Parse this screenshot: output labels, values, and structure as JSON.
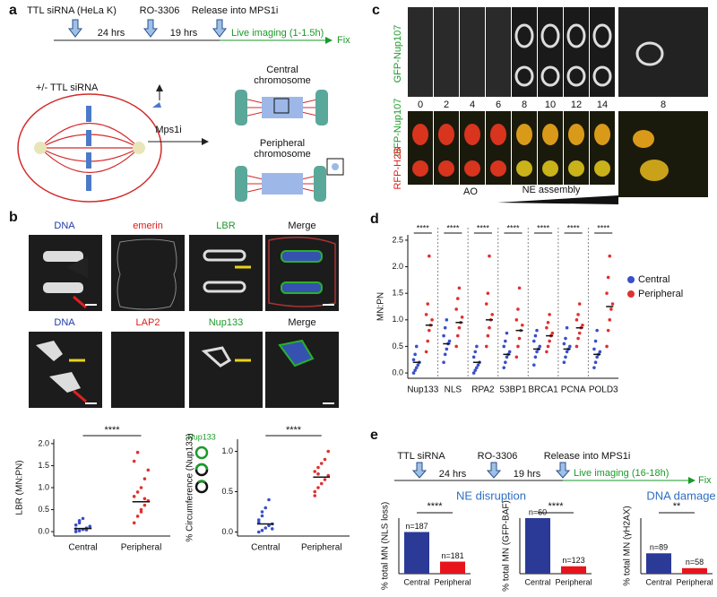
{
  "panels": {
    "a": {
      "label": "a",
      "timeline": [
        "TTL siRNA (HeLa K)",
        "RO-3306",
        "Release into MPS1i"
      ],
      "intervals": [
        "24 hrs",
        "19 hrs"
      ],
      "live": "Live imaging (1-1.5h)",
      "fix": "Fix",
      "treatment": "+/- TTL siRNA",
      "drug": "Mps1i",
      "central": [
        "Central",
        "chromosome"
      ],
      "peripheral": [
        "Peripheral",
        "chromosome"
      ]
    },
    "b": {
      "label": "b",
      "row1": [
        "DNA",
        "emerin",
        "LBR",
        "Merge"
      ],
      "row2": [
        "DNA",
        "LAP2",
        "Nup133",
        "Merge"
      ],
      "icon": "Nup133"
    },
    "c": {
      "label": "c",
      "row1": "GFP-Nup107",
      "row2": [
        "GFP-Nup107",
        "RFP-H2B"
      ],
      "frames": [
        "0",
        "2",
        "4",
        "6",
        "8",
        "10",
        "12",
        "14"
      ],
      "inset": "8",
      "ao": "AO",
      "ne": "NE assembly"
    },
    "d": {
      "label": "d"
    },
    "e": {
      "label": "e",
      "timeline": [
        "TTL siRNA",
        "RO-3306",
        "Release into MPS1i"
      ],
      "intervals": [
        "24 hrs",
        "19 hrs"
      ],
      "live": "Live imaging (16-18h)",
      "fix": "Fix",
      "group": "NE disruption"
    }
  },
  "chart_data": [
    {
      "type": "strip",
      "y_label": "LBR (MN:PN)",
      "categories": [
        "Central",
        "Peripheral"
      ],
      "colors": [
        "#3a4fc8",
        "#e03030"
      ],
      "values": [
        [
          0.0,
          0.02,
          0.05,
          0.08,
          0.1,
          0.15,
          0.2,
          0.3,
          0.04,
          0.12,
          0.06,
          0.25
        ],
        [
          0.2,
          0.35,
          0.5,
          0.6,
          0.7,
          0.8,
          0.9,
          1.0,
          1.2,
          1.4,
          1.6,
          1.8,
          0.45,
          0.75
        ]
      ],
      "means": [
        0.07,
        0.68
      ],
      "significance": "****",
      "ylim": [
        -0.1,
        2.1
      ],
      "yticks": [
        {
          "value": 0,
          "label": "0.0"
        },
        {
          "value": 0.5,
          "label": "0.5"
        },
        {
          "value": 1,
          "label": "1.0"
        },
        {
          "value": 1.5,
          "label": "1.5"
        },
        {
          "value": 2,
          "label": "2.0"
        }
      ]
    },
    {
      "type": "strip",
      "y_label": "% Circumference (Nup133)",
      "categories": [
        "Central",
        "Peripheral"
      ],
      "colors": [
        "#3a4fc8",
        "#e03030"
      ],
      "values": [
        [
          0.0,
          0.02,
          0.05,
          0.08,
          0.1,
          0.15,
          0.2,
          0.3,
          0.4,
          0.04,
          0.12,
          0.25
        ],
        [
          0.45,
          0.55,
          0.6,
          0.65,
          0.7,
          0.75,
          0.8,
          0.85,
          0.9,
          1.0,
          0.5,
          0.72
        ]
      ],
      "means": [
        0.1,
        0.68
      ],
      "significance": "****",
      "ylim": [
        -0.05,
        1.15
      ],
      "yticks": [
        {
          "value": 0,
          "label": "0.0"
        },
        {
          "value": 0.5,
          "label": "0.5"
        },
        {
          "value": 1,
          "label": "1.0"
        }
      ]
    },
    {
      "type": "strip",
      "y_label": "MN:PN",
      "categories": [
        "Nup133",
        "NLS",
        "RPA2",
        "53BP1",
        "BRCA1",
        "PCNA",
        "POLD3"
      ],
      "legend": "right",
      "series": [
        {
          "name": "Central",
          "color": "#3a4fc8",
          "means": [
            0.2,
            0.55,
            0.2,
            0.35,
            0.45,
            0.45,
            0.35
          ],
          "values": [
            [
              0.0,
              0.05,
              0.1,
              0.15,
              0.2,
              0.25,
              0.35,
              0.5
            ],
            [
              0.2,
              0.35,
              0.45,
              0.55,
              0.6,
              0.7,
              0.85,
              1.0
            ],
            [
              0.0,
              0.05,
              0.1,
              0.15,
              0.2,
              0.3,
              0.4,
              0.5
            ],
            [
              0.1,
              0.2,
              0.3,
              0.35,
              0.4,
              0.5,
              0.6,
              0.75
            ],
            [
              0.15,
              0.3,
              0.4,
              0.45,
              0.5,
              0.6,
              0.7,
              0.8
            ],
            [
              0.2,
              0.3,
              0.4,
              0.45,
              0.5,
              0.55,
              0.65,
              0.85
            ],
            [
              0.1,
              0.2,
              0.3,
              0.35,
              0.4,
              0.45,
              0.6,
              0.8
            ]
          ]
        },
        {
          "name": "Peripheral",
          "color": "#e03030",
          "means": [
            0.9,
            0.95,
            1.0,
            0.8,
            0.7,
            0.85,
            1.25
          ],
          "values": [
            [
              0.4,
              0.6,
              0.8,
              0.9,
              1.0,
              1.1,
              1.3,
              2.2
            ],
            [
              0.5,
              0.7,
              0.85,
              0.95,
              1.05,
              1.2,
              1.4,
              1.6
            ],
            [
              0.5,
              0.7,
              0.85,
              1.0,
              1.1,
              1.3,
              1.5,
              2.2
            ],
            [
              0.3,
              0.5,
              0.65,
              0.8,
              0.9,
              1.0,
              1.2,
              1.6
            ],
            [
              0.4,
              0.5,
              0.6,
              0.7,
              0.75,
              0.85,
              0.95,
              1.1
            ],
            [
              0.5,
              0.65,
              0.75,
              0.85,
              0.9,
              1.0,
              1.1,
              1.3
            ],
            [
              0.5,
              0.8,
              1.0,
              1.2,
              1.3,
              1.5,
              1.8,
              2.2
            ]
          ]
        }
      ],
      "significance": [
        "****",
        "****",
        "****",
        "****",
        "****",
        "****",
        "****"
      ],
      "ylim": [
        -0.1,
        2.6
      ],
      "yticks": [
        {
          "value": 0,
          "label": "0.0"
        },
        {
          "value": 0.5,
          "label": "0.5"
        },
        {
          "value": 1,
          "label": "1.0"
        },
        {
          "value": 1.5,
          "label": "1.5"
        },
        {
          "value": 2,
          "label": "2.0"
        },
        {
          "value": 2.5,
          "label": "2.5"
        }
      ]
    },
    {
      "type": "bar",
      "y_label": "% total MN (NLS loss)",
      "categories": [
        "Central",
        "Peripheral"
      ],
      "values": [
        45,
        13
      ],
      "annotations": [
        "n=187",
        "n=181"
      ],
      "colors": [
        "#2b3a97",
        "#e8141c"
      ],
      "significance": "****",
      "ylim": [
        0,
        60
      ]
    },
    {
      "type": "bar",
      "y_label": "% total MN (GFP-BAF)",
      "categories": [
        "Central",
        "Peripheral"
      ],
      "values": [
        60,
        8
      ],
      "annotations": [
        "n=60",
        "n=123"
      ],
      "colors": [
        "#2b3a97",
        "#e8141c"
      ],
      "significance": "****",
      "ylim": [
        0,
        60
      ]
    },
    {
      "type": "bar",
      "title": "DNA damage",
      "y_label": "% total MN (γH2AX)",
      "categories": [
        "Central",
        "Peripheral"
      ],
      "values": [
        22,
        6
      ],
      "annotations": [
        "n=89",
        "n=58"
      ],
      "colors": [
        "#2b3a97",
        "#e8141c"
      ],
      "significance": "**",
      "ylim": [
        0,
        60
      ]
    }
  ]
}
